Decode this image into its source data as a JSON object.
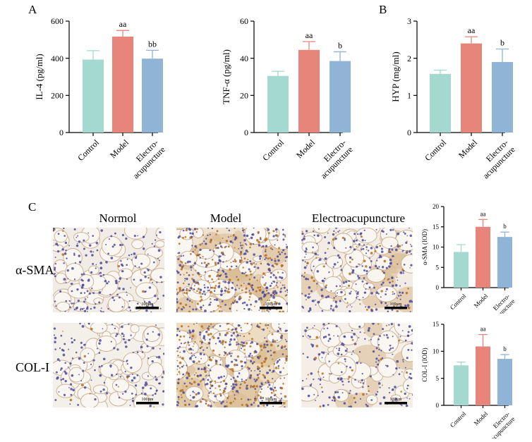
{
  "panel_labels": {
    "a": "A",
    "b": "B",
    "c": "C"
  },
  "micrographs": {
    "columns": [
      "Normol",
      "Model",
      "Electroacupuncture"
    ],
    "rows": [
      "α-SMA",
      "COL-I"
    ],
    "scale_bar_label": "100μm"
  },
  "colors": {
    "control": "#a3d9cf",
    "model": "#e8857a",
    "electro": "#8fb4d6"
  },
  "chart_data": [
    {
      "id": "il4",
      "type": "bar",
      "categories": [
        "Control",
        "Model",
        "Electro-\nacupuncture"
      ],
      "values": [
        393,
        517,
        398
      ],
      "errors": [
        48,
        33,
        45
      ],
      "annotations": [
        "",
        "aa",
        "bb"
      ],
      "ylabel": "IL-4 (pg/ml)",
      "ylim": [
        0,
        600
      ],
      "yticks": [
        0,
        200,
        400,
        600
      ],
      "grid": false
    },
    {
      "id": "tnf",
      "type": "bar",
      "categories": [
        "Control",
        "Model",
        "Electro-\nacupuncture"
      ],
      "values": [
        30.5,
        44.5,
        38.5
      ],
      "errors": [
        2.5,
        4.5,
        5
      ],
      "annotations": [
        "",
        "aa",
        "b"
      ],
      "ylabel": "TNF-α (pg/ml)",
      "ylim": [
        0,
        60
      ],
      "yticks": [
        0,
        20,
        40,
        60
      ],
      "grid": false
    },
    {
      "id": "hyp",
      "type": "bar",
      "categories": [
        "Control",
        "Model",
        "Electro-\nacupuncture"
      ],
      "values": [
        1.58,
        2.4,
        1.9
      ],
      "errors": [
        0.1,
        0.18,
        0.35
      ],
      "annotations": [
        "",
        "aa",
        "b"
      ],
      "ylabel": "HYP (mg/ml)",
      "ylim": [
        0,
        3
      ],
      "yticks": [
        0,
        1,
        2,
        3
      ],
      "grid": false
    },
    {
      "id": "sma",
      "type": "bar",
      "categories": [
        "Control",
        "Model",
        "Electro-\nacupuncture"
      ],
      "values": [
        8.8,
        15,
        12.5
      ],
      "errors": [
        1.8,
        1.8,
        1.2
      ],
      "annotations": [
        "",
        "aa",
        "b"
      ],
      "ylabel": "α-SMA (IOD)",
      "ylim": [
        0,
        20
      ],
      "yticks": [
        0,
        5,
        10,
        15,
        20
      ],
      "grid": false
    },
    {
      "id": "col",
      "type": "bar",
      "categories": [
        "Control",
        "Model",
        "Electro-\nacupuncture"
      ],
      "values": [
        7.4,
        10.9,
        8.6
      ],
      "errors": [
        0.6,
        2.2,
        0.8
      ],
      "annotations": [
        "",
        "aa",
        "b"
      ],
      "ylabel": "COL-I (IOD)",
      "ylim": [
        0,
        15
      ],
      "yticks": [
        0,
        5,
        10,
        15
      ],
      "grid": false
    }
  ]
}
